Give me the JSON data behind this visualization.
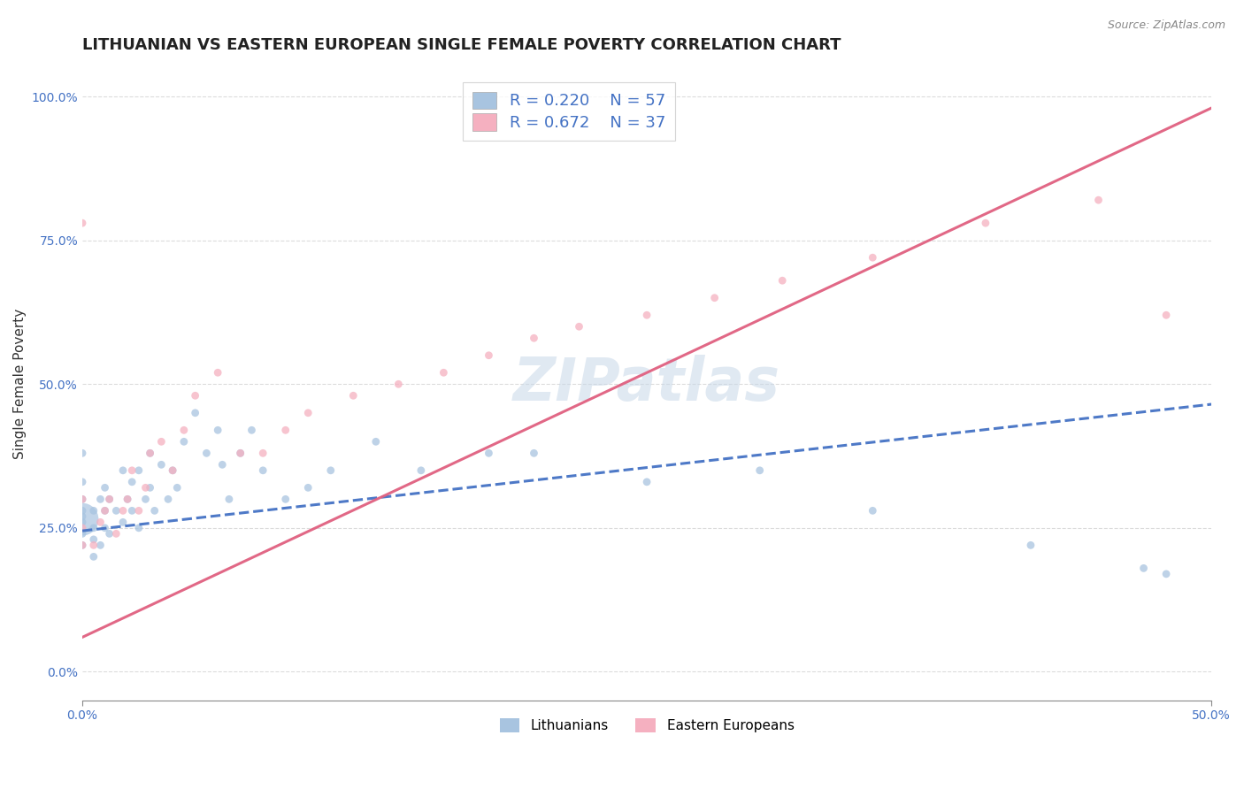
{
  "title": "LITHUANIAN VS EASTERN EUROPEAN SINGLE FEMALE POVERTY CORRELATION CHART",
  "source": "Source: ZipAtlas.com",
  "xlabel": "",
  "ylabel": "Single Female Poverty",
  "xlim": [
    0.0,
    0.5
  ],
  "ylim": [
    -0.05,
    1.05
  ],
  "xtick_labels": [
    "0.0%",
    "50.0%"
  ],
  "ytick_labels": [
    "0.0%",
    "25.0%",
    "50.0%",
    "75.0%",
    "100.0%"
  ],
  "ytick_values": [
    0.0,
    0.25,
    0.5,
    0.75,
    1.0
  ],
  "xtick_values": [
    0.0,
    0.5
  ],
  "legend_r1": "R = 0.220",
  "legend_n1": "N = 57",
  "legend_r2": "R = 0.672",
  "legend_n2": "N = 37",
  "color_blue_light": "#a8c4e0",
  "color_pink": "#f5b0c0",
  "color_blue_line": "#4472c4",
  "color_pink_line": "#e06080",
  "watermark": "ZIPatlas",
  "blue_x": [
    0.0,
    0.0,
    0.0,
    0.0,
    0.0,
    0.0,
    0.0,
    0.0,
    0.005,
    0.005,
    0.005,
    0.005,
    0.008,
    0.008,
    0.01,
    0.01,
    0.01,
    0.012,
    0.012,
    0.015,
    0.018,
    0.018,
    0.02,
    0.022,
    0.022,
    0.025,
    0.025,
    0.028,
    0.03,
    0.03,
    0.032,
    0.035,
    0.038,
    0.04,
    0.042,
    0.045,
    0.05,
    0.055,
    0.06,
    0.062,
    0.065,
    0.07,
    0.075,
    0.08,
    0.09,
    0.1,
    0.11,
    0.13,
    0.15,
    0.18,
    0.2,
    0.25,
    0.3,
    0.35,
    0.42,
    0.47,
    0.48
  ],
  "blue_y": [
    0.22,
    0.24,
    0.26,
    0.27,
    0.28,
    0.3,
    0.33,
    0.38,
    0.2,
    0.23,
    0.25,
    0.28,
    0.22,
    0.3,
    0.25,
    0.28,
    0.32,
    0.24,
    0.3,
    0.28,
    0.26,
    0.35,
    0.3,
    0.28,
    0.33,
    0.25,
    0.35,
    0.3,
    0.32,
    0.38,
    0.28,
    0.36,
    0.3,
    0.35,
    0.32,
    0.4,
    0.45,
    0.38,
    0.42,
    0.36,
    0.3,
    0.38,
    0.42,
    0.35,
    0.3,
    0.32,
    0.35,
    0.4,
    0.35,
    0.38,
    0.38,
    0.33,
    0.35,
    0.28,
    0.22,
    0.18,
    0.17
  ],
  "blue_sizes": [
    40,
    40,
    40,
    40,
    40,
    40,
    40,
    40,
    40,
    40,
    40,
    40,
    40,
    40,
    40,
    40,
    40,
    40,
    40,
    40,
    40,
    40,
    40,
    40,
    40,
    40,
    40,
    40,
    40,
    40,
    40,
    40,
    40,
    40,
    40,
    40,
    40,
    40,
    40,
    40,
    40,
    40,
    40,
    40,
    40,
    40,
    40,
    40,
    40,
    40,
    40,
    40,
    40,
    40,
    40,
    40,
    40
  ],
  "blue_large_x": [
    0.0
  ],
  "blue_large_y": [
    0.265
  ],
  "blue_large_size": [
    700
  ],
  "pink_x": [
    0.0,
    0.0,
    0.0,
    0.0,
    0.005,
    0.008,
    0.01,
    0.012,
    0.015,
    0.018,
    0.02,
    0.022,
    0.025,
    0.028,
    0.03,
    0.035,
    0.04,
    0.045,
    0.05,
    0.06,
    0.07,
    0.08,
    0.09,
    0.1,
    0.12,
    0.14,
    0.16,
    0.18,
    0.2,
    0.22,
    0.25,
    0.28,
    0.31,
    0.35,
    0.4,
    0.45,
    0.48
  ],
  "pink_y": [
    0.22,
    0.25,
    0.3,
    0.78,
    0.22,
    0.26,
    0.28,
    0.3,
    0.24,
    0.28,
    0.3,
    0.35,
    0.28,
    0.32,
    0.38,
    0.4,
    0.35,
    0.42,
    0.48,
    0.52,
    0.38,
    0.38,
    0.42,
    0.45,
    0.48,
    0.5,
    0.52,
    0.55,
    0.58,
    0.6,
    0.62,
    0.65,
    0.68,
    0.72,
    0.78,
    0.82,
    0.62
  ],
  "blue_trend_x": [
    0.0,
    0.5
  ],
  "blue_trend_y": [
    0.245,
    0.465
  ],
  "pink_trend_x": [
    0.0,
    0.5
  ],
  "pink_trend_y": [
    0.06,
    0.98
  ],
  "grid_color": "#cccccc",
  "background_color": "#ffffff",
  "title_fontsize": 13,
  "axis_label_fontsize": 11,
  "tick_fontsize": 10,
  "legend_fontsize": 13,
  "watermark_fontsize": 48,
  "watermark_color": "#c8d8e8",
  "watermark_alpha": 0.55
}
